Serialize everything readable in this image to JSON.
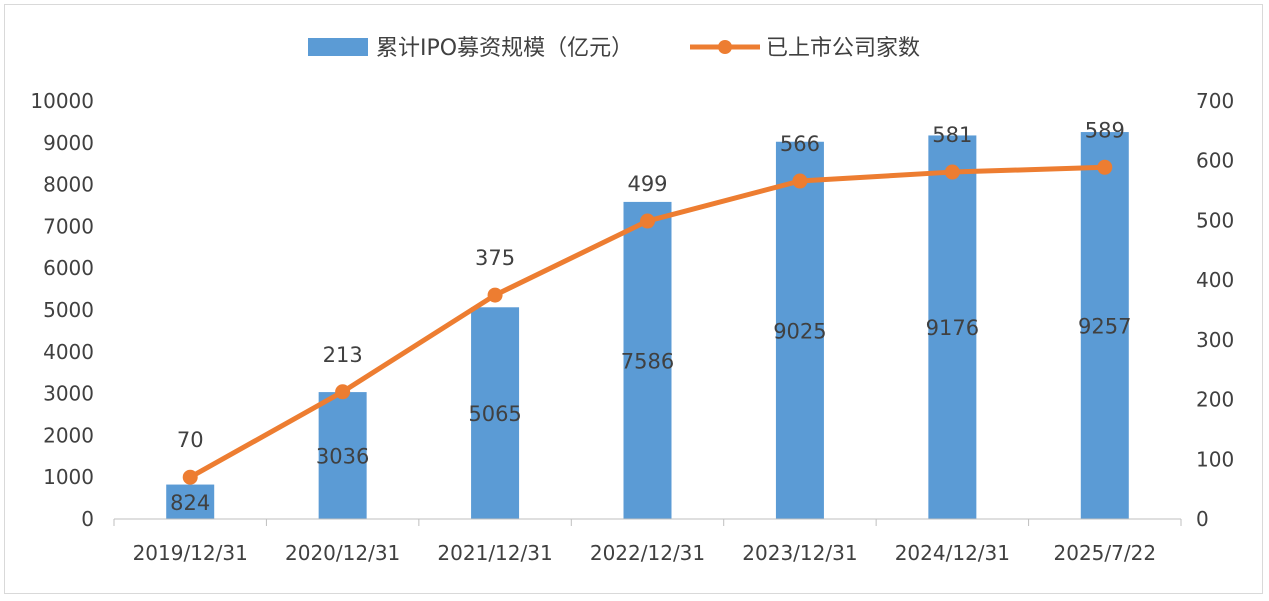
{
  "chart_data": {
    "type": "bar+line",
    "categories": [
      "2019/12/31",
      "2020/12/31",
      "2021/12/31",
      "2022/12/31",
      "2023/12/31",
      "2024/12/31",
      "2025/7/22"
    ],
    "series": [
      {
        "name": "累计IPO募资规模（亿元）",
        "type": "bar",
        "axis": "left",
        "color": "#5b9bd5",
        "values": [
          824,
          3036,
          5065,
          7586,
          9025,
          9176,
          9257
        ]
      },
      {
        "name": "已上市公司家数",
        "type": "line",
        "axis": "right",
        "color": "#ed7d31",
        "values": [
          70,
          213,
          375,
          499,
          566,
          581,
          589
        ]
      }
    ],
    "y_left": {
      "min": 0,
      "max": 10000,
      "step": 1000,
      "ticks": [
        "0",
        "1000",
        "2000",
        "3000",
        "4000",
        "5000",
        "6000",
        "7000",
        "8000",
        "9000",
        "10000"
      ]
    },
    "y_right": {
      "min": 0,
      "max": 700,
      "step": 100,
      "ticks": [
        "0",
        "100",
        "200",
        "300",
        "400",
        "500",
        "600",
        "700"
      ]
    },
    "legend_position": "top",
    "grid": false
  }
}
